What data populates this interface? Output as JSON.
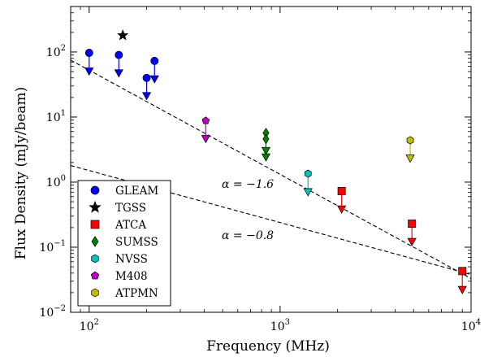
{
  "chart_data": {
    "type": "scatter",
    "xlabel": "Frequency (MHz)",
    "ylabel": "Flux Density (mJy/beam)",
    "xscale": "log",
    "yscale": "log",
    "xlim": [
      80,
      10000
    ],
    "ylim": [
      0.01,
      500
    ],
    "x_ticks": [
      {
        "value": 100,
        "base": "10",
        "exp": "2"
      },
      {
        "value": 1000,
        "base": "10",
        "exp": "3"
      },
      {
        "value": 10000,
        "base": "10",
        "exp": "4"
      }
    ],
    "y_ticks": [
      {
        "value": 0.01,
        "base": "10",
        "exp": "−2"
      },
      {
        "value": 0.1,
        "base": "10",
        "exp": "−1"
      },
      {
        "value": 1,
        "base": "10",
        "exp": "0"
      },
      {
        "value": 10,
        "base": "10",
        "exp": "1"
      },
      {
        "value": 100,
        "base": "10",
        "exp": "2"
      }
    ],
    "legend_position": "lower-left",
    "series": [
      {
        "name": "GLEAM",
        "marker": "circle",
        "color": "#0000ff",
        "points": [
          {
            "x": 100,
            "y": 97,
            "upper_limit": 50
          },
          {
            "x": 143,
            "y": 90,
            "upper_limit": 47
          },
          {
            "x": 200,
            "y": 40,
            "upper_limit": 21
          },
          {
            "x": 220,
            "y": 73,
            "upper_limit": 38
          }
        ]
      },
      {
        "name": "TGSS",
        "marker": "star",
        "color": "#000000",
        "points": [
          {
            "x": 150,
            "y": 180,
            "error": [
              165,
              200
            ]
          }
        ]
      },
      {
        "name": "ATCA",
        "marker": "square",
        "color": "#ff0000",
        "points": [
          {
            "x": 2100,
            "y": 0.73,
            "upper_limit": 0.38
          },
          {
            "x": 4900,
            "y": 0.23,
            "upper_limit": 0.12
          },
          {
            "x": 9000,
            "y": 0.043,
            "upper_limit": 0.022
          }
        ]
      },
      {
        "name": "SUMSS",
        "marker": "diamond",
        "color": "#008000",
        "points": [
          {
            "x": 843,
            "y": 5.7,
            "upper_limit": 3.0
          },
          {
            "x": 843,
            "y": 4.6,
            "upper_limit": 2.4
          }
        ]
      },
      {
        "name": "NVSS",
        "marker": "hexagon",
        "color": "#00bfbf",
        "points": [
          {
            "x": 1400,
            "y": 1.35,
            "upper_limit": 0.7
          }
        ]
      },
      {
        "name": "M408",
        "marker": "pentagon",
        "color": "#bf00bf",
        "points": [
          {
            "x": 408,
            "y": 8.8,
            "upper_limit": 4.6
          }
        ]
      },
      {
        "name": "ATPMN",
        "marker": "hexagon",
        "color": "#bfbf00",
        "points": [
          {
            "x": 4800,
            "y": 4.4,
            "upper_limit": 2.3
          }
        ]
      }
    ],
    "fit_lines": [
      {
        "alpha_label": "α = −1.6",
        "x": [
          80,
          10000
        ],
        "y": [
          75,
          0.033
        ]
      },
      {
        "alpha_label": "α = −0.8",
        "x": [
          80,
          10000
        ],
        "y": [
          1.8,
          0.038
        ]
      }
    ]
  }
}
